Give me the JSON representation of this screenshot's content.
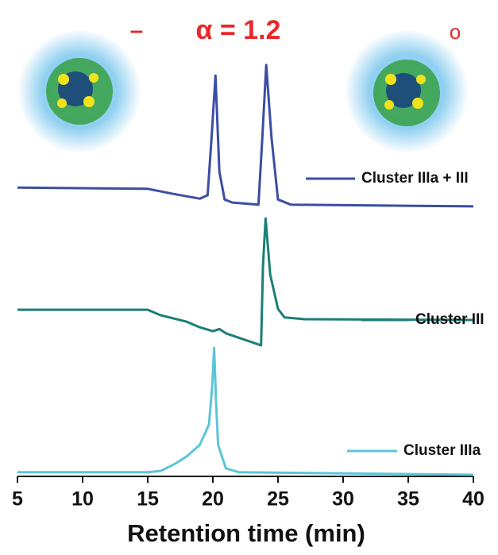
{
  "chart_data": {
    "type": "line",
    "annotations": [
      "–",
      "α = 1.2",
      "o"
    ],
    "x_label": "Retention time (min)",
    "xlim": [
      5,
      40
    ],
    "xticks": [
      5,
      10,
      15,
      20,
      25,
      30,
      35,
      40
    ],
    "ylim": [
      0,
      100
    ],
    "series": [
      {
        "name": "Cluster IIIa + III",
        "color": "#3a4ea3",
        "x": [
          5,
          15,
          17,
          19,
          19.6,
          19.9,
          20.2,
          20.5,
          20.9,
          21.5,
          23.5,
          23.8,
          24.1,
          24.5,
          25,
          26,
          40
        ],
        "values": [
          68.3,
          68,
          66.8,
          65.7,
          66.5,
          80,
          94.4,
          72,
          65.5,
          64.8,
          64.3,
          80,
          96.9,
          80,
          65.5,
          64.3,
          63.9
        ]
      },
      {
        "name": "Cluster III",
        "color": "#1b7f75",
        "x": [
          5,
          15,
          16,
          18,
          19,
          20,
          20.5,
          21,
          23.7,
          23.85,
          24.05,
          24.4,
          25,
          25.5,
          27,
          40
        ],
        "values": [
          39.8,
          39.8,
          38.5,
          37,
          35.7,
          34.8,
          35.3,
          34.3,
          31.5,
          50,
          61.1,
          48,
          40,
          38,
          37.6,
          37.4
        ]
      },
      {
        "name": "Cluster IIIa",
        "color": "#5bc6d6",
        "x": [
          5,
          15,
          16,
          17,
          18,
          19,
          19.7,
          19.95,
          20.1,
          20.25,
          20.4,
          21,
          22,
          40
        ],
        "values": [
          1.9,
          1.9,
          2.2,
          3.7,
          5.6,
          8.3,
          13,
          22,
          30.9,
          18,
          8.3,
          2.8,
          1.9,
          1.3
        ]
      }
    ]
  }
}
